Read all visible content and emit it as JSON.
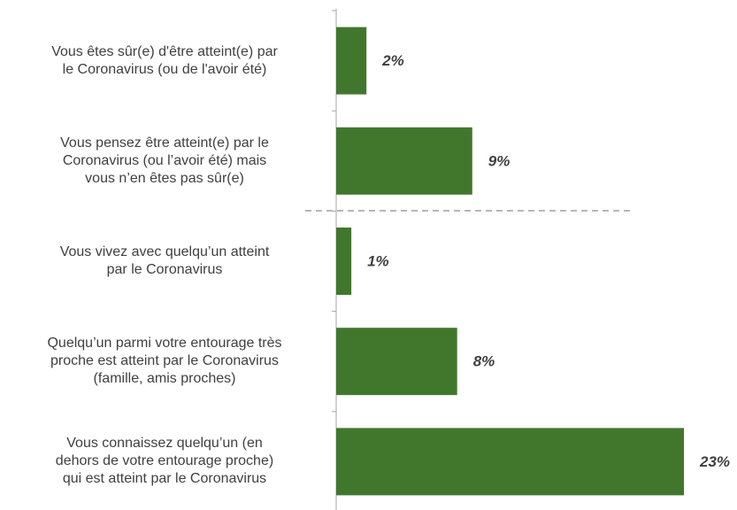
{
  "chart_data": {
    "type": "bar",
    "orientation": "horizontal",
    "categories": [
      "Vous êtes sûr(e) d'être atteint(e) par\nle Coronavirus (ou de l'avoir été)",
      "Vous pensez être atteint(e) par le\nCoronavirus (ou l’avoir été) mais\nvous n’en êtes pas sûr(e)",
      "Vous vivez avec quelqu’un atteint\npar le Coronavirus",
      "Quelqu’un parmi votre entourage très\nproche est atteint par le Coronavirus\n(famille, amis proches)",
      "Vous connaissez quelqu’un (en\ndehors de votre entourage proche)\nqui est atteint par le Coronavirus"
    ],
    "values": [
      2,
      9,
      1,
      8,
      23
    ],
    "value_labels": [
      "2%",
      "9%",
      "1%",
      "8%",
      "23%"
    ],
    "color": "#41772c"
  }
}
